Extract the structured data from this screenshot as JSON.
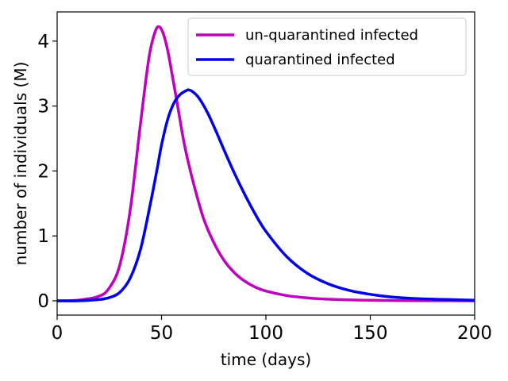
{
  "chart_data": {
    "type": "line",
    "title": "",
    "xlabel": "time (days)",
    "ylabel": "number of individuals (M)",
    "xlim": [
      0,
      200
    ],
    "ylim": [
      -0.22,
      4.45
    ],
    "xticks": [
      0,
      50,
      100,
      150,
      200
    ],
    "xtick_labels": [
      "0",
      "50",
      "100",
      "150",
      "200"
    ],
    "yticks": [
      0,
      1,
      2,
      3,
      4
    ],
    "ytick_labels": [
      "0",
      "1",
      "2",
      "3",
      "4"
    ],
    "grid": false,
    "legend_position": "top-right",
    "series": [
      {
        "name": "un-quarantined infected",
        "color": "#bf00bf",
        "x": [
          0,
          10,
          20,
          25,
          30,
          35,
          40,
          44,
          47,
          49,
          51,
          53,
          55,
          58,
          61,
          65,
          70,
          75,
          80,
          85,
          90,
          95,
          100,
          110,
          120,
          130,
          140,
          150,
          160,
          175,
          200
        ],
        "y": [
          0.0,
          0.01,
          0.07,
          0.2,
          0.55,
          1.4,
          2.75,
          3.75,
          4.15,
          4.22,
          4.1,
          3.85,
          3.5,
          2.95,
          2.4,
          1.85,
          1.28,
          0.9,
          0.62,
          0.43,
          0.3,
          0.21,
          0.15,
          0.08,
          0.045,
          0.025,
          0.015,
          0.009,
          0.005,
          0.002,
          0.0
        ]
      },
      {
        "name": "quarantined infected",
        "color": "#0000ee",
        "x": [
          0,
          10,
          20,
          25,
          30,
          35,
          40,
          45,
          48,
          50,
          53,
          56,
          59,
          62,
          63,
          65,
          68,
          72,
          76,
          80,
          85,
          90,
          95,
          100,
          110,
          120,
          130,
          140,
          150,
          160,
          175,
          200
        ],
        "y": [
          0.0,
          0.0,
          0.02,
          0.05,
          0.13,
          0.35,
          0.8,
          1.55,
          2.05,
          2.4,
          2.8,
          3.05,
          3.18,
          3.24,
          3.25,
          3.22,
          3.12,
          2.9,
          2.62,
          2.32,
          1.96,
          1.63,
          1.33,
          1.07,
          0.68,
          0.42,
          0.26,
          0.16,
          0.1,
          0.06,
          0.03,
          0.01
        ]
      }
    ]
  }
}
